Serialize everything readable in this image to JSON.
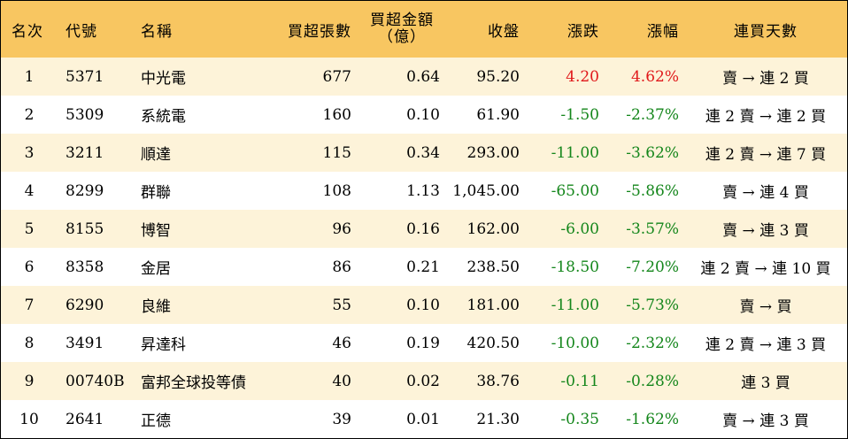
{
  "table": {
    "headers": {
      "rank": "名次",
      "code": "代號",
      "name": "名稱",
      "volume": "買超張數",
      "amount_line1": "買超金額",
      "amount_line2": "（億）",
      "close": "收盤",
      "change": "漲跌",
      "pct": "漲幅",
      "streak": "連買天數"
    },
    "rows": [
      {
        "rank": "1",
        "code": "5371",
        "name": "中光電",
        "volume": "677",
        "amount": "0.64",
        "close": "95.20",
        "change": "4.20",
        "pct": "4.62%",
        "streak": "賣 → 連 2 買",
        "dir": "up"
      },
      {
        "rank": "2",
        "code": "5309",
        "name": "系統電",
        "volume": "160",
        "amount": "0.10",
        "close": "61.90",
        "change": "-1.50",
        "pct": "-2.37%",
        "streak": "連 2 賣 → 連 2 買",
        "dir": "down"
      },
      {
        "rank": "3",
        "code": "3211",
        "name": "順達",
        "volume": "115",
        "amount": "0.34",
        "close": "293.00",
        "change": "-11.00",
        "pct": "-3.62%",
        "streak": "連 2 賣 → 連 7 買",
        "dir": "down"
      },
      {
        "rank": "4",
        "code": "8299",
        "name": "群聯",
        "volume": "108",
        "amount": "1.13",
        "close": "1,045.00",
        "change": "-65.00",
        "pct": "-5.86%",
        "streak": "賣 → 連 4 買",
        "dir": "down"
      },
      {
        "rank": "5",
        "code": "8155",
        "name": "博智",
        "volume": "96",
        "amount": "0.16",
        "close": "162.00",
        "change": "-6.00",
        "pct": "-3.57%",
        "streak": "賣 → 連 3 買",
        "dir": "down"
      },
      {
        "rank": "6",
        "code": "8358",
        "name": "金居",
        "volume": "86",
        "amount": "0.21",
        "close": "238.50",
        "change": "-18.50",
        "pct": "-7.20%",
        "streak": "連 2 賣 → 連 10 買",
        "dir": "down"
      },
      {
        "rank": "7",
        "code": "6290",
        "name": "良維",
        "volume": "55",
        "amount": "0.10",
        "close": "181.00",
        "change": "-11.00",
        "pct": "-5.73%",
        "streak": "賣 → 買",
        "dir": "down"
      },
      {
        "rank": "8",
        "code": "3491",
        "name": "昇達科",
        "volume": "46",
        "amount": "0.19",
        "close": "420.50",
        "change": "-10.00",
        "pct": "-2.32%",
        "streak": "連 2 賣 → 連 3 買",
        "dir": "down"
      },
      {
        "rank": "9",
        "code": "00740B",
        "name": "富邦全球投等債",
        "volume": "40",
        "amount": "0.02",
        "close": "38.76",
        "change": "-0.11",
        "pct": "-0.28%",
        "streak": "連 3 買",
        "dir": "down"
      },
      {
        "rank": "10",
        "code": "2641",
        "name": "正德",
        "volume": "39",
        "amount": "0.01",
        "close": "21.30",
        "change": "-0.35",
        "pct": "-1.62%",
        "streak": "賣 → 連 3 買",
        "dir": "down"
      }
    ]
  },
  "colors": {
    "header_bg": "#f8c661",
    "stripe_bg": "#fdf3d9",
    "up": "#e0191b",
    "down": "#14861b"
  }
}
